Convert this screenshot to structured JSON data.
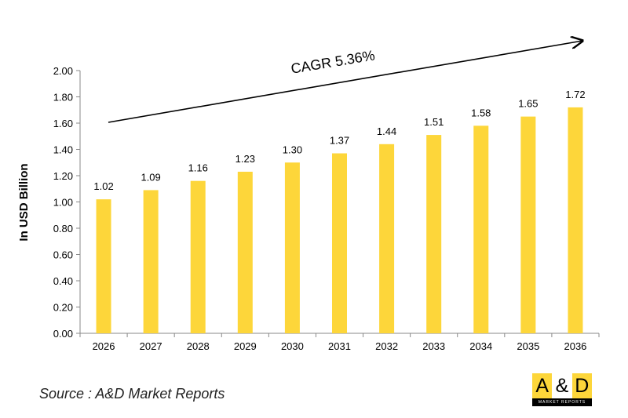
{
  "chart_data": {
    "type": "bar",
    "categories": [
      "2026",
      "2027",
      "2028",
      "2029",
      "2030",
      "2031",
      "2032",
      "2033",
      "2034",
      "2035",
      "2036"
    ],
    "values": [
      1.02,
      1.09,
      1.16,
      1.23,
      1.3,
      1.37,
      1.44,
      1.51,
      1.58,
      1.65,
      1.72
    ],
    "data_labels": [
      "1.02",
      "1.09",
      "1.16",
      "1.23",
      "1.30",
      "1.37",
      "1.44",
      "1.51",
      "1.58",
      "1.65",
      "1.72"
    ],
    "ylabel": "In USD Billion",
    "xlabel": "",
    "ylim": [
      0,
      2.0
    ],
    "yticks": [
      "0.00",
      "0.20",
      "0.40",
      "0.60",
      "0.80",
      "1.00",
      "1.20",
      "1.40",
      "1.60",
      "1.80",
      "2.00"
    ],
    "grid": false,
    "bar_color": "#FDD63A",
    "annotation": "CAGR 5.36%"
  },
  "source": "Source : A&D Market Reports",
  "logo": {
    "left": "A",
    "mid": "&",
    "right": "D",
    "sub": "MARKET REPORTS"
  }
}
